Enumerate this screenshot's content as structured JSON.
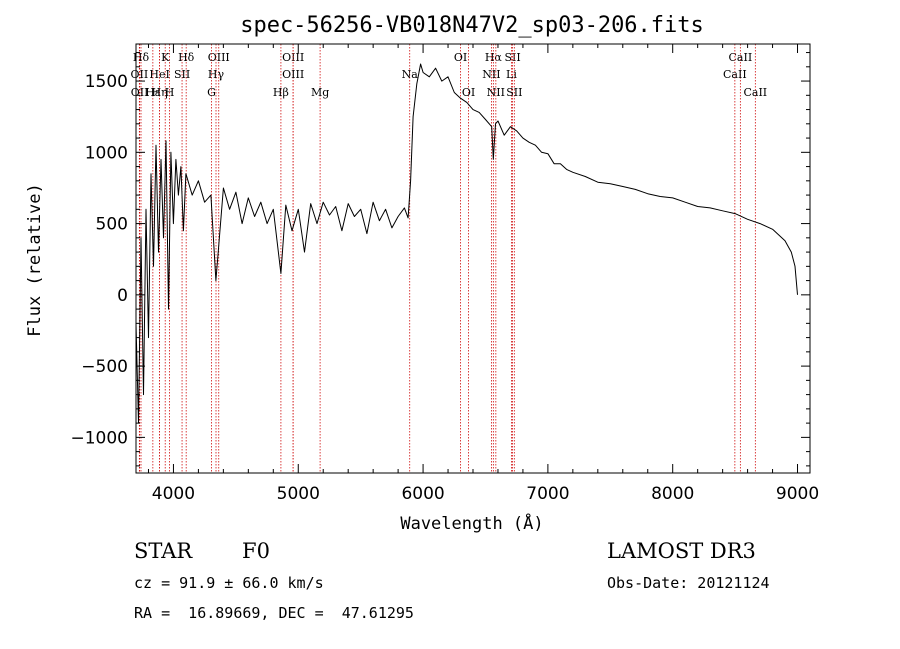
{
  "chart_data": {
    "type": "line",
    "title": "spec-56256-VB018N47V2_sp03-206.fits",
    "xlabel": "Wavelength (Å)",
    "ylabel": "Flux (relative)",
    "xlim": [
      3700,
      9100
    ],
    "ylim": [
      -1250,
      1760
    ],
    "xticks": [
      4000,
      5000,
      6000,
      7000,
      8000,
      9000
    ],
    "yticks": [
      -1000,
      -500,
      0,
      500,
      1000,
      1500
    ],
    "series": [
      {
        "name": "flux",
        "x": [
          3700,
          3720,
          3740,
          3760,
          3780,
          3800,
          3820,
          3840,
          3860,
          3880,
          3900,
          3920,
          3940,
          3960,
          3980,
          4000,
          4020,
          4040,
          4060,
          4080,
          4100,
          4150,
          4200,
          4250,
          4300,
          4340,
          4400,
          4450,
          4500,
          4550,
          4600,
          4650,
          4700,
          4750,
          4800,
          4861,
          4900,
          4950,
          5000,
          5050,
          5100,
          5150,
          5200,
          5250,
          5300,
          5350,
          5400,
          5450,
          5500,
          5550,
          5600,
          5650,
          5700,
          5750,
          5800,
          5850,
          5880,
          5900,
          5920,
          5950,
          5980,
          6000,
          6050,
          6100,
          6150,
          6200,
          6250,
          6300,
          6350,
          6400,
          6450,
          6500,
          6550,
          6563,
          6580,
          6600,
          6650,
          6700,
          6750,
          6800,
          6850,
          6900,
          6950,
          7000,
          7050,
          7100,
          7150,
          7200,
          7300,
          7400,
          7500,
          7600,
          7700,
          7800,
          7900,
          8000,
          8100,
          8200,
          8300,
          8400,
          8500,
          8600,
          8700,
          8800,
          8900,
          8950,
          8980,
          9000
        ],
        "values": [
          -200,
          -900,
          400,
          -700,
          600,
          -300,
          850,
          200,
          1050,
          300,
          950,
          400,
          1080,
          -100,
          1000,
          500,
          950,
          700,
          900,
          450,
          850,
          700,
          800,
          650,
          700,
          100,
          750,
          600,
          720,
          500,
          680,
          550,
          650,
          500,
          600,
          150,
          630,
          450,
          600,
          300,
          640,
          500,
          650,
          560,
          620,
          450,
          640,
          550,
          600,
          430,
          650,
          520,
          600,
          470,
          550,
          610,
          540,
          800,
          1250,
          1480,
          1620,
          1560,
          1530,
          1590,
          1500,
          1530,
          1420,
          1380,
          1350,
          1300,
          1280,
          1230,
          1180,
          950,
          1200,
          1220,
          1120,
          1180,
          1150,
          1100,
          1070,
          1050,
          1000,
          990,
          920,
          920,
          880,
          860,
          830,
          790,
          780,
          760,
          740,
          710,
          690,
          680,
          650,
          620,
          610,
          590,
          570,
          530,
          500,
          460,
          380,
          300,
          200,
          0
        ]
      }
    ],
    "line_markers": [
      {
        "name": "Hδ",
        "wave": 3740,
        "row": 1
      },
      {
        "name": "OII",
        "wave": 3727,
        "row": 2
      },
      {
        "name": "OII",
        "wave": 3729,
        "row": 3
      },
      {
        "name": "K",
        "wave": 3934,
        "row": 1
      },
      {
        "name": "HeI",
        "wave": 3889,
        "row": 2
      },
      {
        "name": "Hε",
        "wave": 3835,
        "row": 3
      },
      {
        "name": "Hη",
        "wave": 3889,
        "row": 3
      },
      {
        "name": "Hδ",
        "wave": 4102,
        "row": 1
      },
      {
        "name": "SII",
        "wave": 4069,
        "row": 2
      },
      {
        "name": "H",
        "wave": 3969,
        "row": 3
      },
      {
        "name": "OIII",
        "wave": 4363,
        "row": 1
      },
      {
        "name": "Hγ",
        "wave": 4341,
        "row": 2
      },
      {
        "name": "G",
        "wave": 4305,
        "row": 3
      },
      {
        "name": "OIII",
        "wave": 4959,
        "row": 1
      },
      {
        "name": "OIII",
        "wave": 4959,
        "row": 2
      },
      {
        "name": "Hβ",
        "wave": 4861,
        "row": 3
      },
      {
        "name": "Mg",
        "wave": 5175,
        "row": 3
      },
      {
        "name": "Na",
        "wave": 5893,
        "row": 2
      },
      {
        "name": "OI",
        "wave": 6300,
        "row": 1
      },
      {
        "name": "OI",
        "wave": 6364,
        "row": 3
      },
      {
        "name": "Hα",
        "wave": 6563,
        "row": 1
      },
      {
        "name": "SII",
        "wave": 6717,
        "row": 1
      },
      {
        "name": "NII",
        "wave": 6548,
        "row": 2
      },
      {
        "name": "Li",
        "wave": 6708,
        "row": 2
      },
      {
        "name": "NII",
        "wave": 6583,
        "row": 3
      },
      {
        "name": "SII",
        "wave": 6731,
        "row": 3
      },
      {
        "name": "CaII",
        "wave": 8542,
        "row": 1
      },
      {
        "name": "CaII",
        "wave": 8498,
        "row": 2
      },
      {
        "name": "CaII",
        "wave": 8662,
        "row": 3
      }
    ]
  },
  "info": {
    "object_class": "STAR",
    "subclass": "F0",
    "survey": "LAMOST DR3",
    "redshift": "cz = 91.9 ± 66.0 km/s",
    "obs_date": "Obs-Date: 20121124",
    "coords": "RA =  16.89669, DEC =  47.61295"
  },
  "colors": {
    "line_marker": "#d01010",
    "spectrum": "#000000",
    "axis": "#000000"
  }
}
